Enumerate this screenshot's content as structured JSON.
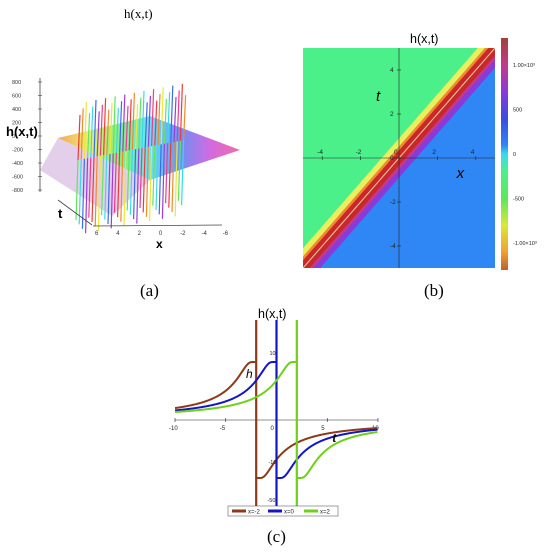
{
  "panels": {
    "a": {
      "caption": "(a)",
      "title": "h(x,t)"
    },
    "b": {
      "caption": "(b)",
      "title": "h(x,t)"
    },
    "c": {
      "caption": "(c)",
      "title": "h(x,t)"
    }
  },
  "colors": {
    "heat_green": "#4cf08a",
    "heat_blue": "#2f86f5",
    "heat_red": "#c9282a",
    "line_x_neg2": "#8b3a1a",
    "line_x_0": "#1515c8",
    "line_x_2": "#6ed01a"
  },
  "chart_data": [
    {
      "type": "surface3d",
      "panel": "a",
      "title": "h(x,t)",
      "zlabel": "h(x,t)",
      "xlabel": "x",
      "ylabel": "t",
      "z_ticks": [
        "800",
        "600",
        "400",
        "200",
        "0",
        "-200",
        "-400",
        "-600",
        "-800"
      ],
      "x_ticks": [
        "6",
        "4",
        "2",
        "0",
        "-2",
        "-4",
        "-6"
      ],
      "zlim": [
        -900,
        900
      ]
    },
    {
      "type": "heatmap",
      "panel": "b",
      "title": "h(x,t)",
      "xlabel": "x",
      "ylabel": "t",
      "x_ticks": [
        "-4",
        "-2",
        "0",
        "2",
        "4"
      ],
      "y_ticks": [
        "4",
        "2",
        "0",
        "-2",
        "-4"
      ],
      "xlim": [
        -5,
        5
      ],
      "ylim": [
        -5,
        5
      ],
      "singular_line": "t = x",
      "colorbar": {
        "ticks": [
          "1.00×10³",
          "500",
          "0",
          "-500",
          "-1.00×10³"
        ],
        "tick_values": [
          1000,
          500,
          0,
          -500,
          -1000
        ],
        "stops": [
          {
            "value": 1300,
            "color": "#a0423a"
          },
          {
            "value": 1000,
            "color": "#c23a8a"
          },
          {
            "value": 700,
            "color": "#8a3ad8"
          },
          {
            "value": 400,
            "color": "#3a4ce0"
          },
          {
            "value": 100,
            "color": "#2f86f5"
          },
          {
            "value": 0,
            "color": "#3ad8f0"
          },
          {
            "value": -200,
            "color": "#4cf08a"
          },
          {
            "value": -500,
            "color": "#5ce85a"
          },
          {
            "value": -800,
            "color": "#d8e83a"
          },
          {
            "value": -1100,
            "color": "#f0a030"
          },
          {
            "value": -1300,
            "color": "#c0602a"
          }
        ]
      }
    },
    {
      "type": "line",
      "panel": "c",
      "title": "h(x,t)",
      "xlabel": "t",
      "ylabel": "h",
      "x_ticks": [
        "-10",
        "-5",
        "0",
        "5",
        "10"
      ],
      "y_tick_labels": [
        "10",
        "-10",
        "-50"
      ],
      "xlim": [
        -10,
        10
      ],
      "function": "h = 10 / (t - x)",
      "series": [
        {
          "name": "x=-2",
          "shift": -2,
          "color": "#8b3a1a"
        },
        {
          "name": "x=0",
          "shift": 0,
          "color": "#1515c8"
        },
        {
          "name": "x=2",
          "shift": 2,
          "color": "#6ed01a"
        }
      ]
    }
  ]
}
